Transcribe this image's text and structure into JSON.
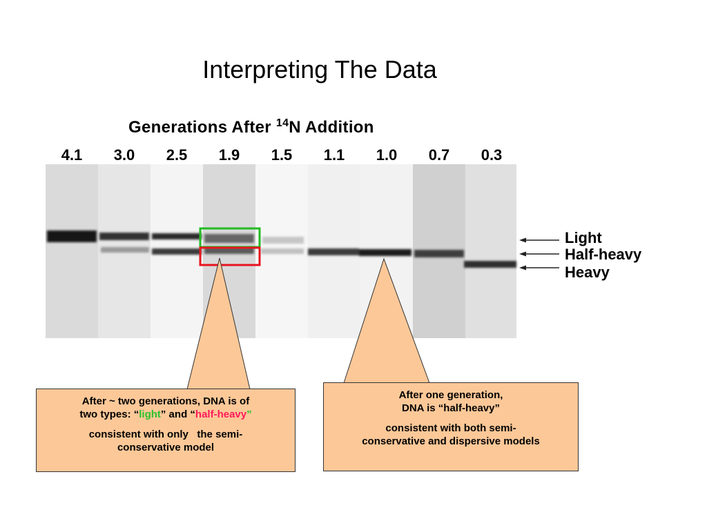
{
  "slide": {
    "title": "Interpreting The Data"
  },
  "gel": {
    "heading_prefix": "Generations After ",
    "heading_isotope_mass": "14",
    "heading_suffix": "N Addition",
    "lanes": [
      "4.1",
      "3.0",
      "2.5",
      "1.9",
      "1.5",
      "1.1",
      "1.0",
      "0.7",
      "0.3"
    ],
    "band_labels": [
      "Light",
      "Half-heavy",
      "Heavy"
    ],
    "highlight_colors": {
      "light_box": "#22bb22",
      "half_heavy_box": "#e8141e"
    }
  },
  "callouts": {
    "left": {
      "line1": "After ~ two generations, DNA is of",
      "line2_start": "two types: “",
      "light_word": "light",
      "line2_mid": "” and “",
      "half_heavy_word": "half-heavy",
      "line2_end": "”",
      "line3": "consistent with only   the semi-",
      "line4": "conservative model"
    },
    "right": {
      "line1": "After one generation,",
      "line2": "DNA is “half-heavy”",
      "line3": "consistent with both semi-",
      "line4": "conservative and dispersive models"
    },
    "fill_color": "#fcc898"
  }
}
